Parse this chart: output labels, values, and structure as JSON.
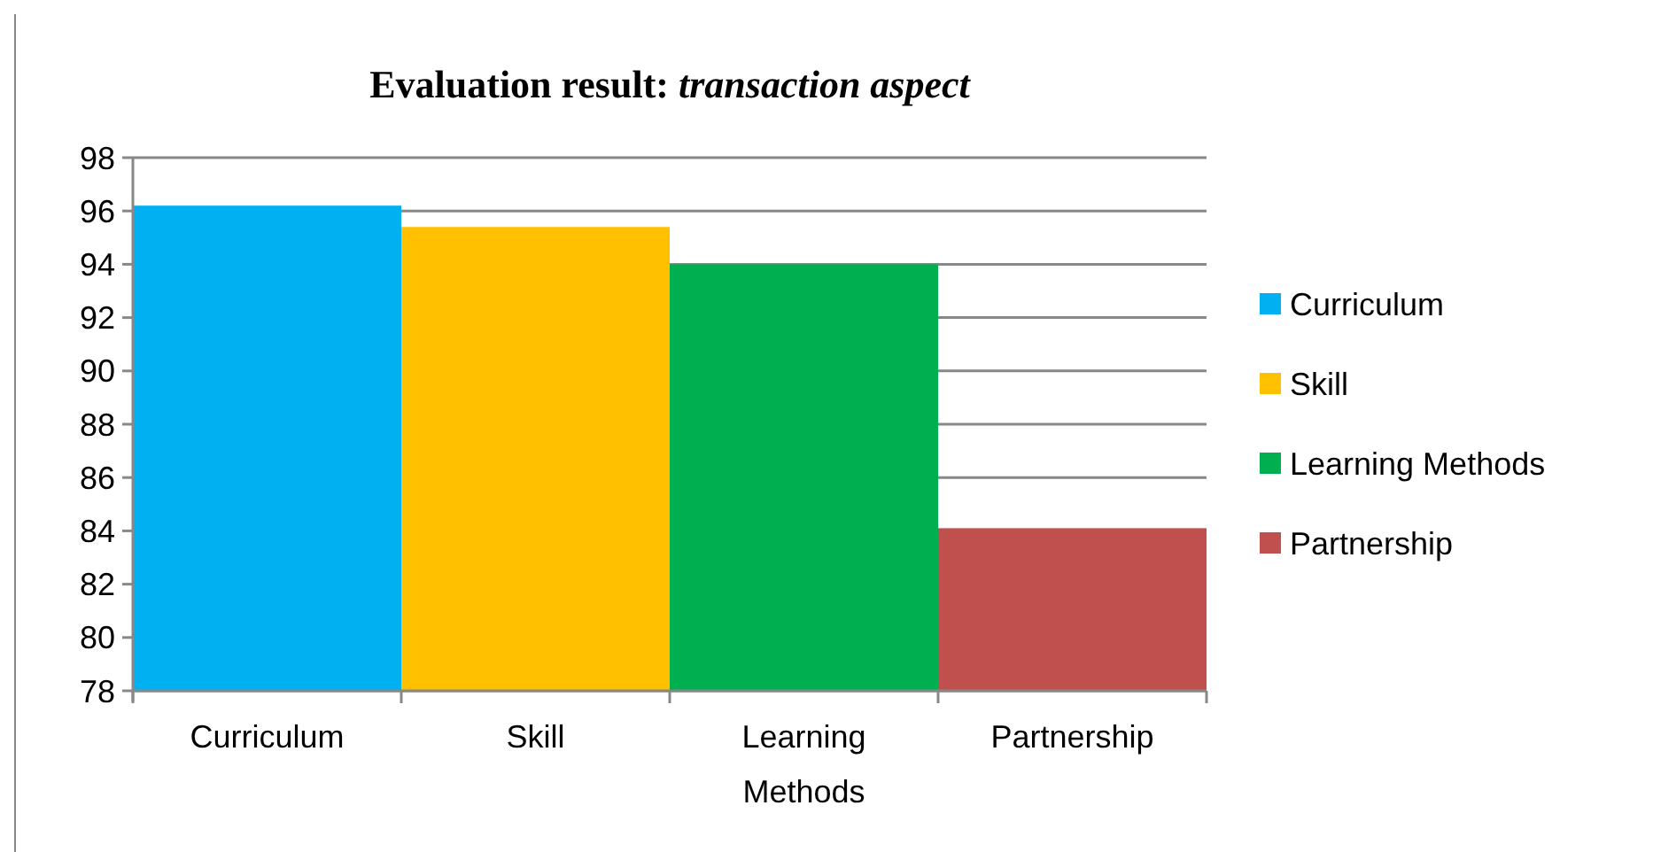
{
  "chart_data": {
    "type": "bar",
    "title": "Evaluation result: transaction aspect",
    "categories": [
      "Curriculum",
      "Skill",
      "Learning Methods",
      "Partnership"
    ],
    "series": [
      {
        "name": "Curriculum",
        "color": "#00b0f0",
        "values": [
          96.2,
          null,
          null,
          null
        ]
      },
      {
        "name": "Skill",
        "color": "#ffc000",
        "values": [
          null,
          95.4,
          null,
          null
        ]
      },
      {
        "name": "Learning Methods",
        "color": "#00b050",
        "values": [
          null,
          null,
          94.0,
          null
        ]
      },
      {
        "name": "Partnership",
        "color": "#c0504d",
        "values": [
          null,
          null,
          null,
          84.1
        ]
      }
    ],
    "ylim": [
      78,
      98
    ],
    "yticks": [
      78,
      80,
      82,
      84,
      86,
      88,
      90,
      92,
      94,
      96,
      98
    ],
    "grid": "y",
    "legend": "right"
  }
}
